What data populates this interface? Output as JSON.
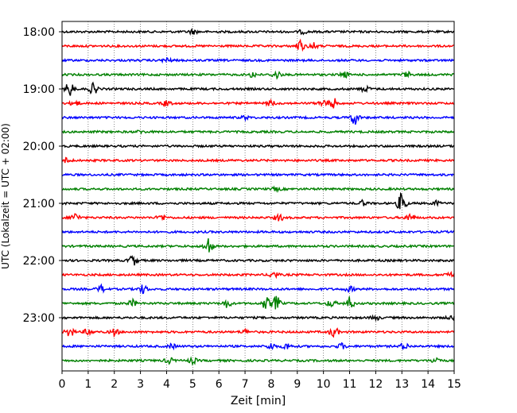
{
  "chart_data": {
    "type": "line",
    "title": "",
    "xlabel": "Zeit  [min]",
    "ylabel": "UTC (Lokalzeit = UTC + 02:00)",
    "xlim": [
      0,
      15
    ],
    "x_ticks": [
      "0",
      "1",
      "2",
      "3",
      "4",
      "5",
      "6",
      "7",
      "8",
      "9",
      "10",
      "11",
      "12",
      "13",
      "14",
      "15"
    ],
    "y_ticks": [
      {
        "label": "18:00",
        "trace": 0
      },
      {
        "label": "19:00",
        "trace": 4
      },
      {
        "label": "20:00",
        "trace": 8
      },
      {
        "label": "21:00",
        "trace": 12
      },
      {
        "label": "22:00",
        "trace": 16
      },
      {
        "label": "23:00",
        "trace": 20
      }
    ],
    "grid": "vertical dotted",
    "colors": [
      "#000000",
      "#ff0000",
      "#0000ff",
      "#008000"
    ],
    "traces": [
      {
        "start": "18:00",
        "color": "#000000",
        "events": [
          [
            5.0,
            0.4
          ],
          [
            9.2,
            0.3
          ]
        ]
      },
      {
        "start": "18:15",
        "color": "#ff0000",
        "events": [
          [
            9.1,
            1.0
          ],
          [
            9.6,
            0.6
          ]
        ]
      },
      {
        "start": "18:30",
        "color": "#0000ff",
        "events": [
          [
            4.0,
            0.4
          ]
        ]
      },
      {
        "start": "18:45",
        "color": "#008000",
        "events": [
          [
            7.3,
            0.5
          ],
          [
            8.2,
            0.7
          ],
          [
            10.8,
            0.5
          ],
          [
            13.2,
            0.5
          ]
        ]
      },
      {
        "start": "19:00",
        "color": "#000000",
        "events": [
          [
            0.3,
            1.3
          ],
          [
            1.2,
            1.0
          ],
          [
            11.6,
            0.5
          ]
        ]
      },
      {
        "start": "19:15",
        "color": "#ff0000",
        "events": [
          [
            0.5,
            0.5
          ],
          [
            4.0,
            0.5
          ],
          [
            8.0,
            0.5
          ],
          [
            10.0,
            0.7
          ],
          [
            10.4,
            0.9
          ]
        ]
      },
      {
        "start": "19:30",
        "color": "#0000ff",
        "events": [
          [
            11.2,
            1.3
          ],
          [
            7.0,
            0.3
          ]
        ]
      },
      {
        "start": "19:45",
        "color": "#008000",
        "events": [
          [
            3.0,
            0.2
          ]
        ]
      },
      {
        "start": "20:00",
        "color": "#000000",
        "events": []
      },
      {
        "start": "20:15",
        "color": "#ff0000",
        "events": [
          [
            0.2,
            0.5
          ]
        ]
      },
      {
        "start": "20:30",
        "color": "#0000ff",
        "events": []
      },
      {
        "start": "20:45",
        "color": "#008000",
        "events": [
          [
            8.2,
            0.3
          ]
        ]
      },
      {
        "start": "21:00",
        "color": "#000000",
        "events": [
          [
            11.5,
            0.5
          ],
          [
            13.0,
            2.0
          ],
          [
            14.3,
            0.4
          ]
        ]
      },
      {
        "start": "21:15",
        "color": "#ff0000",
        "events": [
          [
            0.5,
            0.8
          ],
          [
            3.8,
            0.5
          ],
          [
            8.3,
            0.6
          ],
          [
            13.3,
            0.7
          ]
        ]
      },
      {
        "start": "21:30",
        "color": "#0000ff",
        "events": []
      },
      {
        "start": "21:45",
        "color": "#008000",
        "events": [
          [
            5.6,
            1.6
          ]
        ]
      },
      {
        "start": "22:00",
        "color": "#000000",
        "events": [
          [
            2.7,
            1.0
          ]
        ]
      },
      {
        "start": "22:15",
        "color": "#ff0000",
        "events": [
          [
            8.1,
            0.6
          ],
          [
            14.8,
            0.5
          ]
        ]
      },
      {
        "start": "22:30",
        "color": "#0000ff",
        "events": [
          [
            1.5,
            0.6
          ],
          [
            3.1,
            0.8
          ],
          [
            11.0,
            0.5
          ]
        ]
      },
      {
        "start": "22:45",
        "color": "#008000",
        "events": [
          [
            2.7,
            0.6
          ],
          [
            6.3,
            0.7
          ],
          [
            7.8,
            1.1
          ],
          [
            8.2,
            1.3
          ],
          [
            10.3,
            0.6
          ],
          [
            11.0,
            1.1
          ]
        ]
      },
      {
        "start": "23:00",
        "color": "#000000",
        "events": [
          [
            12.0,
            0.4
          ],
          [
            14.9,
            0.4
          ]
        ]
      },
      {
        "start": "23:15",
        "color": "#ff0000",
        "events": [
          [
            0.3,
            0.9
          ],
          [
            1.0,
            0.6
          ],
          [
            2.0,
            0.6
          ],
          [
            7.0,
            0.4
          ],
          [
            10.4,
            0.9
          ]
        ]
      },
      {
        "start": "23:30",
        "color": "#0000ff",
        "events": [
          [
            4.2,
            0.4
          ],
          [
            8.0,
            0.6
          ],
          [
            8.6,
            0.6
          ],
          [
            10.7,
            0.5
          ],
          [
            13.1,
            0.6
          ]
        ]
      },
      {
        "start": "23:45",
        "color": "#008000",
        "events": [
          [
            4.1,
            0.5
          ],
          [
            5.0,
            0.5
          ],
          [
            14.3,
            0.6
          ]
        ]
      }
    ]
  }
}
